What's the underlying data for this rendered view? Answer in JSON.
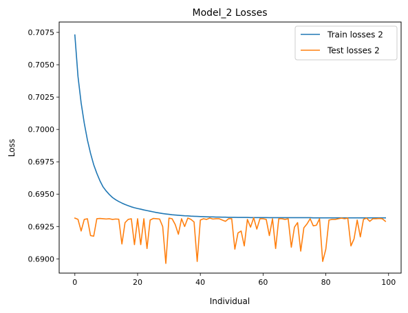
{
  "chart_data": {
    "type": "line",
    "title": "Model_2 Losses",
    "xlabel": "Individual",
    "ylabel": "Loss",
    "xlim": [
      -5,
      104
    ],
    "ylim": [
      0.6889,
      0.7083
    ],
    "xticks": [
      0,
      20,
      40,
      60,
      80,
      100
    ],
    "yticks": [
      0.69,
      0.6925,
      0.695,
      0.6975,
      0.7,
      0.7025,
      0.705,
      0.7075
    ],
    "ytick_labels": [
      "0.6900",
      "0.6925",
      "0.6950",
      "0.6975",
      "0.7000",
      "0.7025",
      "0.7050",
      "0.7075"
    ],
    "grid": false,
    "legend_position": "top-right",
    "series": [
      {
        "name": "Train losses 2",
        "color": "#1f77b4",
        "values": [
          0.7073,
          0.70409,
          0.70205,
          0.70048,
          0.69919,
          0.69815,
          0.69728,
          0.69661,
          0.69603,
          0.69556,
          0.69524,
          0.69497,
          0.69474,
          0.69457,
          0.69443,
          0.69431,
          0.6942,
          0.69411,
          0.69402,
          0.69395,
          0.69389,
          0.69384,
          0.69378,
          0.69373,
          0.69368,
          0.69363,
          0.69358,
          0.69354,
          0.6935,
          0.69347,
          0.69344,
          0.69341,
          0.69339,
          0.69337,
          0.69335,
          0.69333,
          0.69332,
          0.6933,
          0.69329,
          0.69328,
          0.69327,
          0.69326,
          0.69325,
          0.69324,
          0.69324,
          0.69323,
          0.69323,
          0.69322,
          0.69322,
          0.69321,
          0.69321,
          0.69321,
          0.6932,
          0.6932,
          0.6932,
          0.6932,
          0.69319,
          0.69319,
          0.69319,
          0.69319,
          0.69319,
          0.69319,
          0.69318,
          0.69318,
          0.69318,
          0.69318,
          0.69318,
          0.69318,
          0.69318,
          0.69318,
          0.69318,
          0.69318,
          0.69318,
          0.69318,
          0.69318,
          0.69318,
          0.69317,
          0.69317,
          0.69317,
          0.69317,
          0.69317,
          0.69317,
          0.69317,
          0.69317,
          0.69317,
          0.69317,
          0.69317,
          0.69317,
          0.69317,
          0.69317,
          0.69317,
          0.69317,
          0.69317,
          0.69317,
          0.69317,
          0.69317,
          0.69317,
          0.69317,
          0.69317,
          0.69317
        ]
      },
      {
        "name": "Test losses 2",
        "color": "#ff7f0e",
        "values": [
          0.69315,
          0.69305,
          0.69215,
          0.69305,
          0.6931,
          0.6918,
          0.69175,
          0.6931,
          0.69312,
          0.6931,
          0.69308,
          0.6931,
          0.69305,
          0.69308,
          0.69306,
          0.69115,
          0.6928,
          0.69305,
          0.6931,
          0.6911,
          0.6931,
          0.6911,
          0.6931,
          0.6908,
          0.693,
          0.69312,
          0.6931,
          0.69308,
          0.6925,
          0.68965,
          0.69315,
          0.6931,
          0.69265,
          0.6919,
          0.6931,
          0.6925,
          0.69315,
          0.69305,
          0.69285,
          0.6898,
          0.693,
          0.6931,
          0.69305,
          0.69315,
          0.69308,
          0.6931,
          0.6931,
          0.693,
          0.6929,
          0.6931,
          0.6931,
          0.69075,
          0.692,
          0.69215,
          0.691,
          0.69305,
          0.69245,
          0.69318,
          0.6923,
          0.6931,
          0.6931,
          0.69305,
          0.6918,
          0.6931,
          0.6908,
          0.6931,
          0.6931,
          0.69305,
          0.6931,
          0.6909,
          0.69245,
          0.6928,
          0.6906,
          0.6924,
          0.6927,
          0.6931,
          0.69255,
          0.6926,
          0.6931,
          0.6898,
          0.69075,
          0.693,
          0.69305,
          0.69305,
          0.6931,
          0.69315,
          0.6931,
          0.69315,
          0.691,
          0.69155,
          0.693,
          0.6917,
          0.69305,
          0.69315,
          0.6929,
          0.6931,
          0.6931,
          0.69312,
          0.6931,
          0.6929
        ]
      }
    ]
  }
}
